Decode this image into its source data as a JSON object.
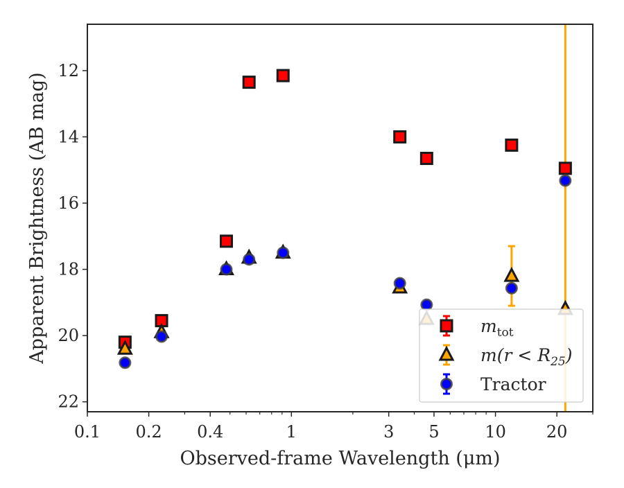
{
  "chart_data": {
    "type": "scatter",
    "xlabel": "Observed-frame Wavelength (μm)",
    "ylabel": "Apparent Brightness (AB mag)",
    "xscale": "log",
    "xlim": [
      0.1,
      30
    ],
    "ylim": [
      22.3,
      10.6
    ],
    "y_inverted": true,
    "grid": false,
    "legend_position": "lower right",
    "x_ticks": [
      {
        "value": 0.1,
        "label": "0.1"
      },
      {
        "value": 0.2,
        "label": "0.2"
      },
      {
        "value": 0.4,
        "label": "0.4"
      },
      {
        "value": 1,
        "label": "1"
      },
      {
        "value": 3,
        "label": "3"
      },
      {
        "value": 5,
        "label": "5"
      },
      {
        "value": 10,
        "label": "10"
      },
      {
        "value": 20,
        "label": "20"
      }
    ],
    "x_minor_ticks": [
      0.3,
      0.5,
      0.6,
      0.7,
      0.8,
      0.9,
      2,
      4,
      6,
      7,
      8,
      9,
      30
    ],
    "y_ticks": [
      {
        "value": 12,
        "label": "12"
      },
      {
        "value": 14,
        "label": "14"
      },
      {
        "value": 16,
        "label": "16"
      },
      {
        "value": 18,
        "label": "18"
      },
      {
        "value": 20,
        "label": "20"
      },
      {
        "value": 22,
        "label": "22"
      }
    ],
    "series": [
      {
        "name_base": "m",
        "name_sub": "tot",
        "marker": "square",
        "fill": "#ff0000",
        "edge": "#1a1a1a",
        "errcolor": "#ff0000",
        "x": [
          0.153,
          0.231,
          0.48,
          0.62,
          0.91,
          3.4,
          4.6,
          12.0,
          22.0
        ],
        "y": [
          20.2,
          19.55,
          17.15,
          12.35,
          12.15,
          14.0,
          14.65,
          14.25,
          14.95
        ]
      },
      {
        "name_base": "m(r < R",
        "name_sub": "25",
        "name_tail": ")",
        "marker": "triangle",
        "fill": "#ffa500",
        "edge": "#1a1a1a",
        "errcolor": "#ffa500",
        "x": [
          0.153,
          0.231,
          0.48,
          0.62,
          0.91,
          3.4,
          4.6,
          12.0,
          22.0
        ],
        "y": [
          20.4,
          19.9,
          18.0,
          17.65,
          17.5,
          18.55,
          19.5,
          18.2,
          19.2
        ],
        "yerr": [
          0,
          0,
          0,
          0,
          0,
          0,
          0,
          0.9,
          99
        ]
      },
      {
        "name_base": "Tractor",
        "marker": "circle",
        "fill": "#0000ff",
        "edge": "#404040",
        "errcolor": "#0000ff",
        "x": [
          0.153,
          0.231,
          0.48,
          0.62,
          0.91,
          3.4,
          4.6,
          12.0,
          22.0
        ],
        "y": [
          20.82,
          20.03,
          18.0,
          17.7,
          17.5,
          18.42,
          19.07,
          18.57,
          15.32
        ]
      }
    ]
  }
}
